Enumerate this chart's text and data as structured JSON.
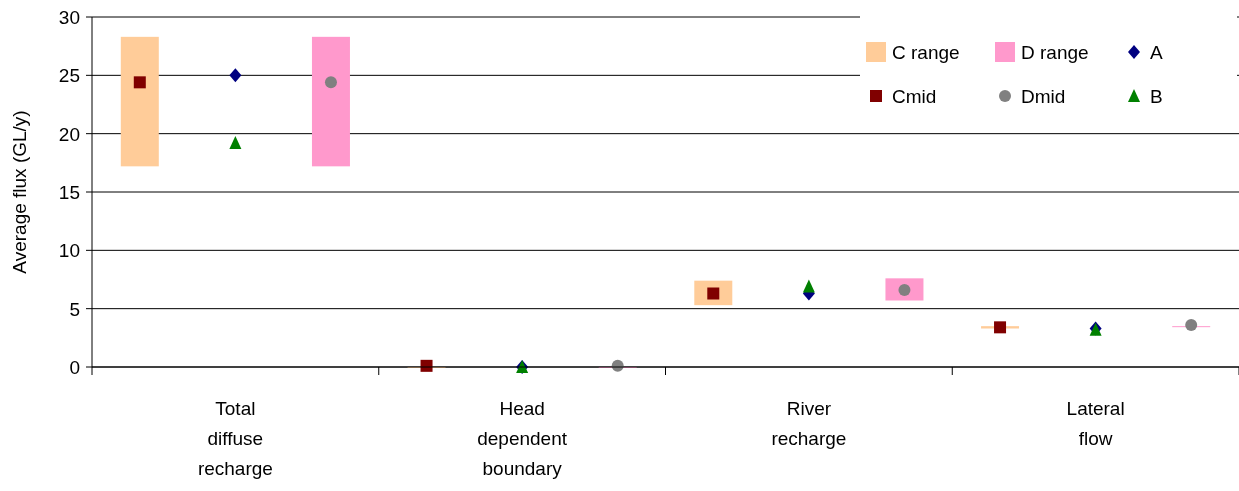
{
  "chart_data": {
    "type": "bar",
    "ylabel": "Average flux (GL/y)",
    "categories": [
      "Total diffuse recharge",
      "Head dependent boundary",
      "River recharge",
      "Lateral flow"
    ],
    "ylim": [
      0,
      30
    ],
    "yticks": [
      0,
      5,
      10,
      15,
      20,
      25,
      30
    ],
    "grid": "y",
    "legend": "top right",
    "series": [
      {
        "name": "C range",
        "color": "#ffcc99",
        "base": [
          17.2,
          0,
          5.3,
          3.3
        ],
        "values": [
          11.1,
          0,
          2.1,
          0.2
        ]
      },
      {
        "name": "D range",
        "color": "#ff99cc",
        "base": [
          17.2,
          0,
          5.7,
          3.5
        ],
        "values": [
          11.1,
          0,
          1.9,
          0
        ]
      },
      {
        "name": "A",
        "type": "scatter",
        "marker": "diamond",
        "color": "#000080",
        "values": [
          25.0,
          0.0,
          6.3,
          3.3
        ]
      },
      {
        "name": "Cmid",
        "type": "scatter",
        "marker": "square",
        "color": "#800000",
        "values": [
          24.4,
          0.1,
          6.3,
          3.4
        ]
      },
      {
        "name": "Dmid",
        "type": "scatter",
        "marker": "circle",
        "color": "#808080",
        "values": [
          24.4,
          0.1,
          6.6,
          3.6
        ]
      },
      {
        "name": "B",
        "type": "scatter",
        "marker": "triangle",
        "color": "#008000",
        "values": [
          19.2,
          0.0,
          6.9,
          3.2
        ]
      }
    ]
  }
}
